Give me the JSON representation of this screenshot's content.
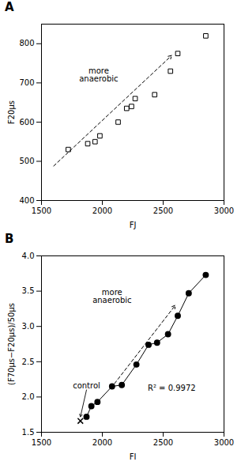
{
  "chart_data": [
    {
      "type": "scatter",
      "title": "A",
      "xlabel": "FJ",
      "ylabel": "F20μs",
      "series": [
        {
          "type": "scatter",
          "marker": "open_square",
          "x": [
            1720,
            1880,
            1940,
            1980,
            2130,
            2200,
            2240,
            2270,
            2430,
            2560,
            2620,
            2850
          ],
          "values": [
            530,
            545,
            550,
            565,
            600,
            635,
            640,
            660,
            670,
            730,
            775,
            820
          ]
        }
      ],
      "arrows": [
        {
          "x1": 1600,
          "y1": 488,
          "x2": 2570,
          "y2": 770,
          "line_style": "dashed"
        }
      ],
      "annotations": [
        {
          "text": "more\nanaerobic",
          "x": 1970,
          "y": 720
        }
      ],
      "xlim": [
        1500,
        3000
      ],
      "ylim": [
        400,
        850
      ],
      "xticks": [
        1500,
        2000,
        2500,
        3000
      ],
      "yticks": [
        400,
        500,
        600,
        700,
        800
      ],
      "grid": false
    },
    {
      "type": "line",
      "title": "B",
      "xlabel": "FI",
      "ylabel": "(F70μs−F20μs)/50μs",
      "series": [
        {
          "type": "line",
          "marker": "circle",
          "x": [
            1870,
            1910,
            1960,
            2080,
            2160,
            2280,
            2380,
            2450,
            2540,
            2620,
            2710,
            2850
          ],
          "values": [
            1.72,
            1.87,
            1.93,
            2.15,
            2.17,
            2.46,
            2.74,
            2.77,
            2.89,
            3.15,
            3.47,
            3.73
          ]
        },
        {
          "type": "scatter",
          "marker": "x",
          "x": [
            1820
          ],
          "values": [
            1.66
          ]
        }
      ],
      "arrows": [
        {
          "x1": 2100,
          "y1": 2.19,
          "x2": 2600,
          "y2": 3.3,
          "line_style": "dashed"
        }
      ],
      "annotations": [
        {
          "text": "more\nanaerobic",
          "x": 2080,
          "y": 3.42
        },
        {
          "text": "R² = 0.9972",
          "x": 2570,
          "y": 2.12
        },
        {
          "text": "control",
          "x": 1870,
          "y": 2.1,
          "arrow_x": 1820,
          "arrow_y": 1.72
        }
      ],
      "xlim": [
        1500,
        3000
      ],
      "ylim": [
        1.5,
        4.0
      ],
      "xticks": [
        1500,
        2000,
        2500,
        3000
      ],
      "yticks": [
        1.5,
        {
          "value": 2.0,
          "label": "2.0"
        },
        2.5,
        {
          "value": 3.0,
          "label": "3.0"
        },
        3.5,
        {
          "value": 4.0,
          "label": "4.0"
        }
      ],
      "grid": false
    }
  ]
}
